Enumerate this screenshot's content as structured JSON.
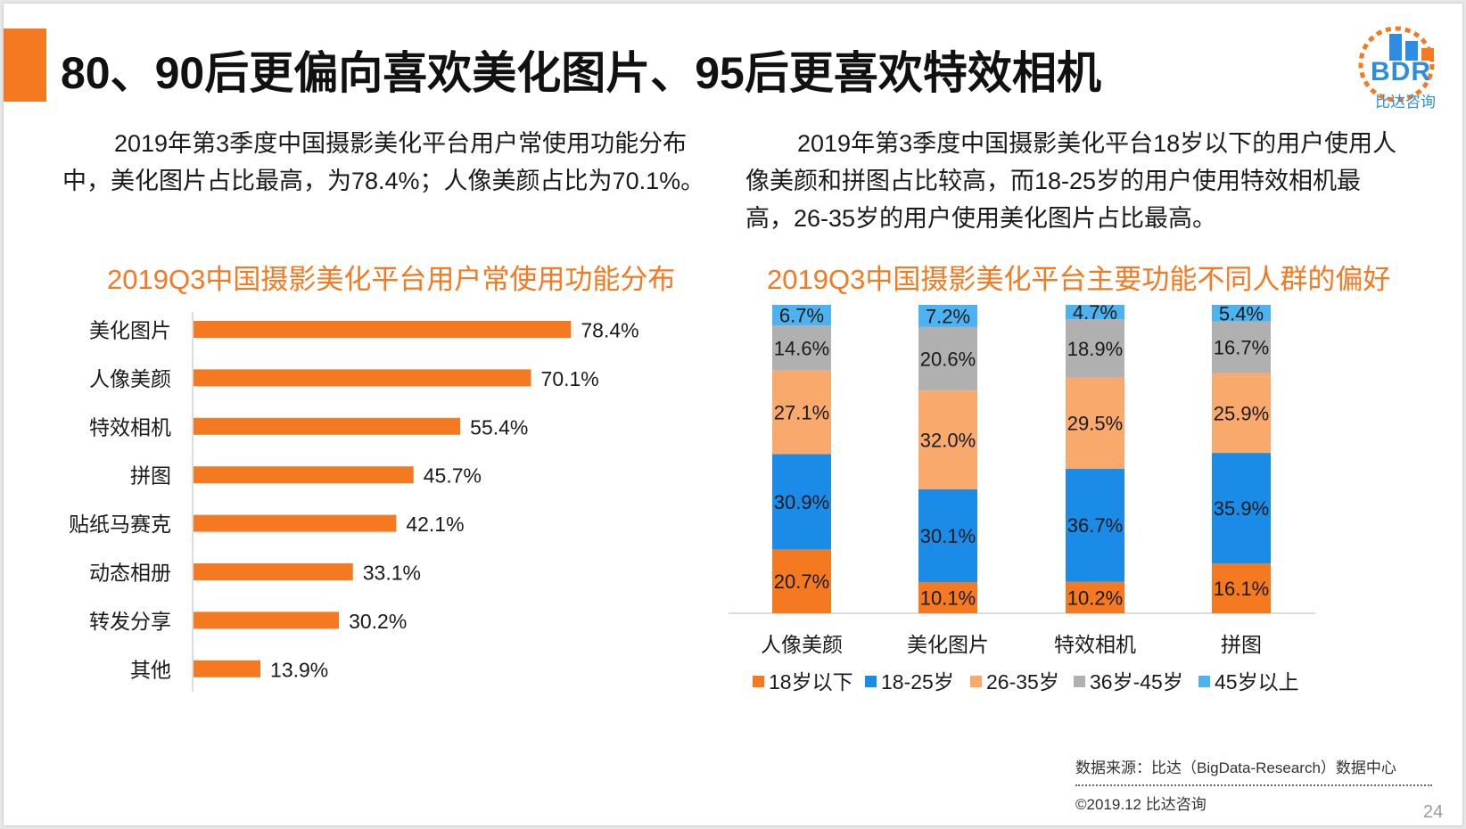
{
  "title": "80、90后更偏向喜欢美化图片、95后更喜欢特效相机",
  "logo": {
    "text": "BDR",
    "subtitle": "比达咨询"
  },
  "desc_left": "2019年第3季度中国摄影美化平台用户常使用功能分布中，美化图片占比最高，为78.4%；人像美颜占比为70.1%。",
  "desc_right": "2019年第3季度中国摄影美化平台18岁以下的用户使用人像美颜和拼图占比较高，而18-25岁的用户使用特效相机最高，26-35岁的用户使用美化图片占比最高。",
  "footer": {
    "source": "数据来源：比达（BigData-Research）数据中心",
    "copyright": "©2019.12 比达咨询",
    "page": "24"
  },
  "colors": {
    "accent": "#f47920",
    "blue": "#1a8ce8",
    "light_orange": "#f9a96b",
    "gray": "#b0b0b0",
    "light_blue": "#4db3f0"
  },
  "chart_data": [
    {
      "type": "bar",
      "orientation": "horizontal",
      "title": "2019Q3中国摄影美化平台用户常使用功能分布",
      "categories": [
        "美化图片",
        "人像美颜",
        "特效相机",
        "拼图",
        "贴纸马赛克",
        "动态相册",
        "转发分享",
        "其他"
      ],
      "values": [
        78.4,
        70.1,
        55.4,
        45.7,
        42.1,
        33.1,
        30.2,
        13.9
      ],
      "labels": [
        "78.4%",
        "70.1%",
        "55.4%",
        "45.7%",
        "42.1%",
        "33.1%",
        "30.2%",
        "13.9%"
      ],
      "unit": "%",
      "xlim": [
        0,
        100
      ],
      "legend": "none"
    },
    {
      "type": "bar",
      "stacked": true,
      "title": "2019Q3中国摄影美化平台主要功能不同人群的偏好",
      "categories": [
        "人像美颜",
        "美化图片",
        "特效相机",
        "拼图"
      ],
      "series": [
        {
          "name": "18岁以下",
          "values": [
            20.7,
            10.1,
            10.2,
            16.1
          ],
          "labels": [
            "20.7%",
            "10.1%",
            "10.2%",
            "16.1%"
          ]
        },
        {
          "name": "18-25岁",
          "values": [
            30.9,
            30.1,
            36.7,
            35.9
          ],
          "labels": [
            "30.9%",
            "30.1%",
            "36.7%",
            "35.9%"
          ]
        },
        {
          "name": "26-35岁",
          "values": [
            27.1,
            32.0,
            29.5,
            25.9
          ],
          "labels": [
            "27.1%",
            "32.0%",
            "29.5%",
            "25.9%"
          ]
        },
        {
          "name": "36岁-45岁",
          "values": [
            14.6,
            20.6,
            18.9,
            16.7
          ],
          "labels": [
            "14.6%",
            "20.6%",
            "18.9%",
            "16.7%"
          ]
        },
        {
          "name": "45岁以上",
          "values": [
            6.7,
            7.2,
            4.7,
            5.4
          ],
          "labels": [
            "6.7%",
            "7.2%",
            "4.7%",
            "5.4%"
          ]
        }
      ],
      "unit": "%",
      "ylim": [
        0,
        100
      ],
      "legend": "bottom"
    }
  ]
}
